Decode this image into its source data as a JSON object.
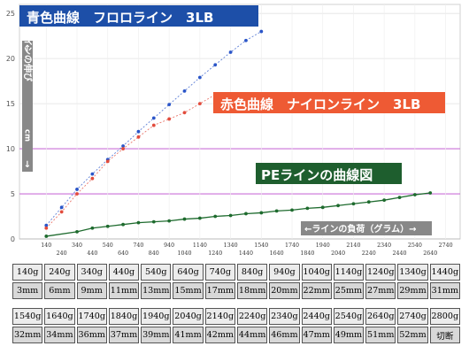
{
  "chart_data": {
    "type": "line",
    "xlim": [
      0,
      2800
    ],
    "ylim": [
      0,
      26
    ],
    "y_ticks": [
      0,
      5,
      10,
      15,
      20,
      25
    ],
    "x_ticks_upper": [
      140,
      340,
      540,
      740,
      940,
      1140,
      1340,
      1540,
      1740,
      1940,
      2140,
      2340,
      2540,
      2740
    ],
    "x_ticks_lower": [
      240,
      440,
      640,
      840,
      1040,
      1240,
      1440,
      1640,
      1840,
      2040,
      2240,
      2440,
      2640
    ],
    "series": [
      {
        "name": "青色曲線　フロロライン　3LB",
        "color": "#2a55c8",
        "x": [
          140,
          240,
          340,
          440,
          540,
          640,
          740,
          840,
          940,
          1040,
          1140,
          1240,
          1340,
          1440,
          1540
        ],
        "y": [
          1.5,
          3.5,
          5.5,
          7.2,
          8.8,
          10.3,
          11.9,
          13.4,
          14.9,
          16.4,
          17.9,
          19.3,
          20.7,
          22.0,
          23.0
        ]
      },
      {
        "name": "赤色曲線　ナイロンライン　3LB",
        "color": "#e24b3c",
        "x": [
          140,
          240,
          340,
          440,
          540,
          640,
          740,
          840,
          940,
          1040,
          1140,
          1240
        ],
        "y": [
          1.2,
          3.0,
          5.0,
          6.7,
          8.6,
          10.0,
          11.3,
          12.6,
          13.3,
          14.0,
          15.0,
          16.0
        ]
      },
      {
        "name": "PEラインの曲線図",
        "color": "#1e6b2e",
        "x": [
          140,
          340,
          440,
          540,
          640,
          740,
          840,
          940,
          1040,
          1140,
          1240,
          1340,
          1440,
          1540,
          1640,
          1740,
          1840,
          1940,
          2040,
          2140,
          2240,
          2340,
          2440,
          2540,
          2640
        ],
        "y": [
          0.3,
          0.8,
          1.2,
          1.4,
          1.6,
          1.8,
          1.9,
          2.0,
          2.2,
          2.3,
          2.5,
          2.6,
          2.8,
          2.9,
          3.1,
          3.2,
          3.4,
          3.5,
          3.7,
          3.9,
          4.1,
          4.3,
          4.6,
          4.9,
          5.1
        ]
      }
    ]
  },
  "labels": {
    "blue": "青色曲線　フロロライン　3LB",
    "red": "赤色曲線　ナイロンライン　3LB",
    "pe": "PEラインの曲線図",
    "yaxis_arrow_up": "↑",
    "yaxis_text": "ラインの伸び",
    "yaxis_unit": "cm",
    "yaxis_arrow_down": "↓",
    "xaxis": "←ラインの負荷（グラム）→"
  },
  "table1": {
    "weights": [
      "140g",
      "240g",
      "340g",
      "440g",
      "540g",
      "640g",
      "740g",
      "840g",
      "940g",
      "1040g",
      "1140g",
      "1240g",
      "1340g",
      "1440g"
    ],
    "stretch": [
      "3mm",
      "6mm",
      "9mm",
      "11mm",
      "13mm",
      "15mm",
      "17mm",
      "18mm",
      "20mm",
      "22mm",
      "25mm",
      "27mm",
      "29mm",
      "31mm"
    ]
  },
  "table2": {
    "weights": [
      "1540g",
      "1640g",
      "1740g",
      "1840g",
      "1940g",
      "2040g",
      "2140g",
      "2240g",
      "2340g",
      "2440g",
      "2540g",
      "2640g",
      "2740g",
      "2800g"
    ],
    "stretch": [
      "32mm",
      "34mm",
      "36mm",
      "37mm",
      "39mm",
      "41mm",
      "42mm",
      "44mm",
      "46mm",
      "47mm",
      "49mm",
      "51mm",
      "52mm",
      "切断"
    ]
  }
}
